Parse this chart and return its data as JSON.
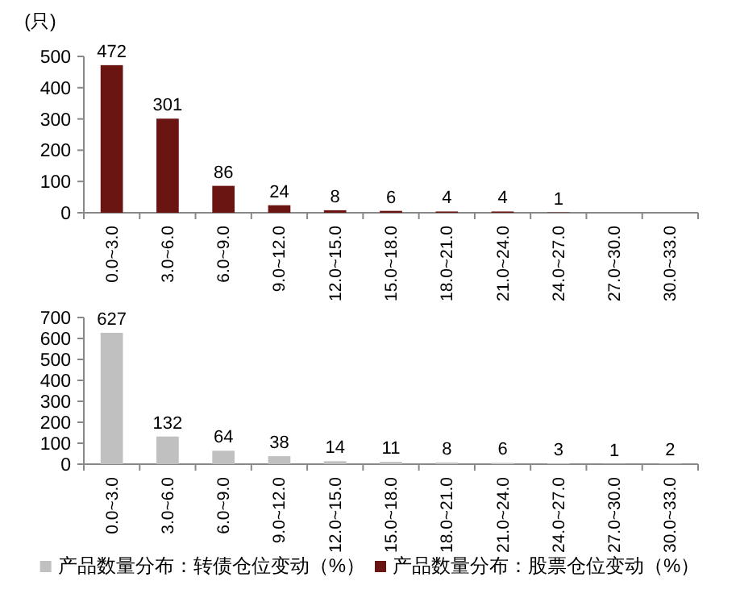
{
  "chart_data": [
    {
      "type": "bar",
      "ylabel": "(只)",
      "categories": [
        "0.0~3.0",
        "3.0~6.0",
        "6.0~9.0",
        "9.0~12.0",
        "12.0~15.0",
        "15.0~18.0",
        "18.0~21.0",
        "21.0~24.0",
        "24.0~27.0",
        "27.0~30.0",
        "30.0~33.0"
      ],
      "series": [
        {
          "name": "产品数量分布：股票仓位变动（%）",
          "color": "#6b1512",
          "values": [
            472,
            301,
            86,
            24,
            8,
            6,
            4,
            4,
            1,
            null,
            null
          ]
        }
      ],
      "ylim": [
        0,
        500
      ],
      "yticks": [
        0,
        100,
        200,
        300,
        400,
        500
      ],
      "data_labels": true,
      "grid": false,
      "legend": "bottom"
    },
    {
      "type": "bar",
      "categories": [
        "0.0~3.0",
        "3.0~6.0",
        "6.0~9.0",
        "9.0~12.0",
        "12.0~15.0",
        "15.0~18.0",
        "18.0~21.0",
        "21.0~24.0",
        "24.0~27.0",
        "27.0~30.0",
        "30.0~33.0"
      ],
      "series": [
        {
          "name": "产品数量分布：转债仓位变动（%）",
          "color": "#c0c0c0",
          "values": [
            627,
            132,
            64,
            38,
            14,
            11,
            8,
            6,
            3,
            1,
            2
          ]
        }
      ],
      "ylim": [
        0,
        700
      ],
      "yticks": [
        0,
        100,
        200,
        300,
        400,
        500,
        600,
        700
      ],
      "data_labels": true,
      "grid": false,
      "legend": "bottom"
    }
  ]
}
